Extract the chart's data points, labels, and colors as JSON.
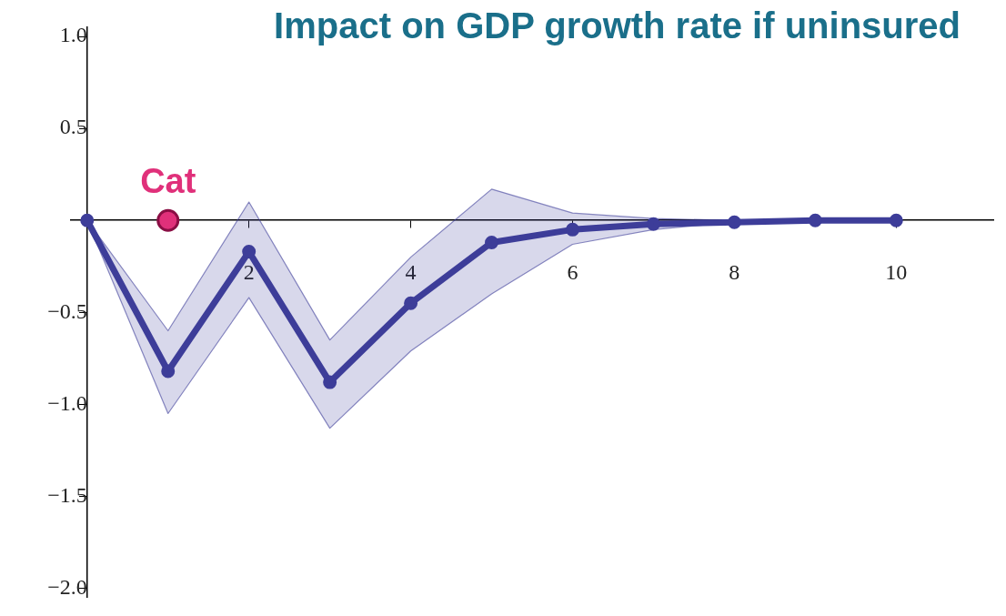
{
  "chart_data": {
    "type": "line",
    "title": "Impact on GDP growth rate if uninsured",
    "x": [
      0,
      1,
      2,
      3,
      4,
      5,
      6,
      7,
      8,
      9,
      10
    ],
    "series": [
      {
        "color": "#3d3d99",
        "values": [
          0,
          -0.82,
          -0.17,
          -0.88,
          -0.45,
          -0.12,
          -0.05,
          -0.02,
          -0.01,
          0,
          0
        ],
        "lower": [
          0,
          -1.05,
          -0.42,
          -1.13,
          -0.71,
          -0.4,
          -0.13,
          -0.05,
          -0.01,
          0,
          0
        ],
        "upper": [
          0,
          -0.6,
          0.1,
          -0.65,
          -0.2,
          0.17,
          0.04,
          0.01,
          0,
          0,
          0
        ]
      },
      {
        "type": "scatter",
        "color": "#e0307a",
        "x": [
          1
        ],
        "values": [
          0
        ]
      }
    ],
    "annotations": [
      {
        "text": "Cat",
        "x": 1,
        "y": 0
      }
    ],
    "xlim": [
      -0.2,
      11.2
    ],
    "xticks": [
      2,
      4,
      6,
      8,
      10
    ],
    "ylim": [
      -2.05,
      1.05
    ],
    "yticks": [
      {
        "value": 1,
        "label": "1.0"
      },
      {
        "value": 0.5,
        "label": "0.5"
      },
      {
        "value": -0.5,
        "label": "−0.5"
      },
      {
        "value": -1,
        "label": "−1.0"
      },
      {
        "value": -1.5,
        "label": "−1.5"
      },
      {
        "value": -2,
        "label": "−2.0"
      }
    ],
    "grid": false,
    "legend": false,
    "marker": "circle",
    "line_style": "solid"
  }
}
